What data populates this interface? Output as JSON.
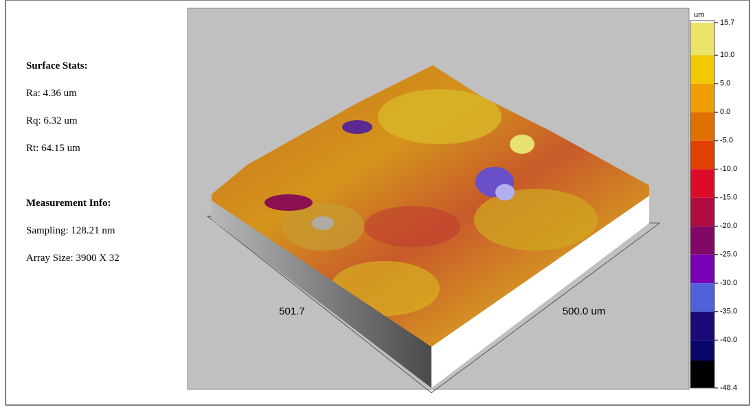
{
  "stats": {
    "title": "Surface Stats:",
    "ra": "Ra: 4.36 um",
    "rq": "Rq: 6.32 um",
    "rt": "Rt: 64.15 um"
  },
  "measurement": {
    "title": "Measurement Info:",
    "sampling": "Sampling: 128.21 nm",
    "array_size": "Array Size: 3900 X 32"
  },
  "view": {
    "x_label": "501.7",
    "y_label": "500.0 um"
  },
  "colorbar": {
    "unit": "um",
    "lim": [
      -48.4,
      15.7
    ],
    "ticks": [
      {
        "value": 15.7,
        "label": "15.7"
      },
      {
        "value": 10,
        "label": "10.0"
      },
      {
        "value": 5,
        "label": "5.0"
      },
      {
        "value": 0,
        "label": "0.0"
      },
      {
        "value": -5,
        "label": "-5.0"
      },
      {
        "value": -10,
        "label": "-10.0"
      },
      {
        "value": -15,
        "label": "-15.0"
      },
      {
        "value": -20,
        "label": "-20.0"
      },
      {
        "value": -25,
        "label": "-25.0"
      },
      {
        "value": -30,
        "label": "-30.0"
      },
      {
        "value": -35,
        "label": "-35.0"
      },
      {
        "value": -40,
        "label": "-40.0"
      },
      {
        "value": -48.4,
        "label": "-48.4"
      }
    ],
    "colors": [
      "#ece46a",
      "#f2c800",
      "#eda000",
      "#e07000",
      "#e04000",
      "#dc0c28",
      "#b00c40",
      "#820868",
      "#7a00b8",
      "#5060d8",
      "#1c0a78",
      "#08086a"
    ]
  }
}
